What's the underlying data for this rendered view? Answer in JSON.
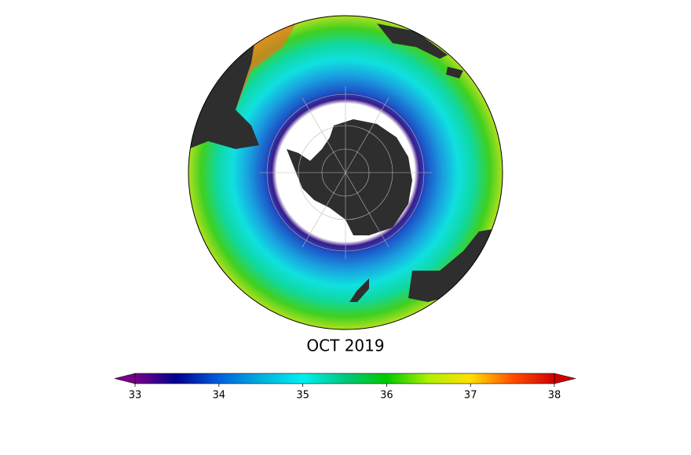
{
  "map": {
    "title": "OCT 2019"
  },
  "colorbar": {
    "lim": [
      33,
      38
    ],
    "ticks": [
      33,
      34,
      35,
      36,
      37,
      38
    ]
  }
}
